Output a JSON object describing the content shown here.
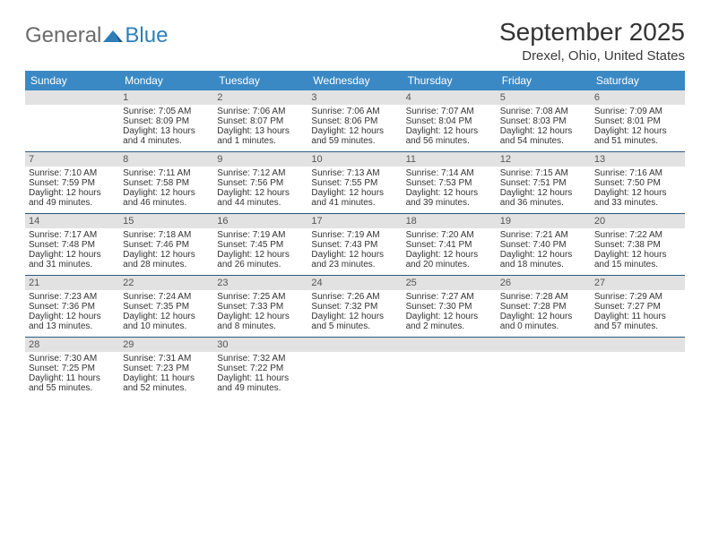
{
  "logo": {
    "text1": "General",
    "text2": "Blue"
  },
  "title": "September 2025",
  "location": "Drexel, Ohio, United States",
  "weekdays": [
    "Sunday",
    "Monday",
    "Tuesday",
    "Wednesday",
    "Thursday",
    "Friday",
    "Saturday"
  ],
  "colors": {
    "header_bg": "#3b89c4",
    "daynum_bg": "#e2e2e2",
    "row_border": "#2a5a82",
    "logo_gray": "#6b6b6b",
    "logo_blue": "#2d7fb8"
  },
  "weeks": [
    [
      {
        "n": "",
        "empty": true
      },
      {
        "n": "1",
        "sunrise": "7:05 AM",
        "sunset": "8:09 PM",
        "daylight": "13 hours and 4 minutes."
      },
      {
        "n": "2",
        "sunrise": "7:06 AM",
        "sunset": "8:07 PM",
        "daylight": "13 hours and 1 minutes."
      },
      {
        "n": "3",
        "sunrise": "7:06 AM",
        "sunset": "8:06 PM",
        "daylight": "12 hours and 59 minutes."
      },
      {
        "n": "4",
        "sunrise": "7:07 AM",
        "sunset": "8:04 PM",
        "daylight": "12 hours and 56 minutes."
      },
      {
        "n": "5",
        "sunrise": "7:08 AM",
        "sunset": "8:03 PM",
        "daylight": "12 hours and 54 minutes."
      },
      {
        "n": "6",
        "sunrise": "7:09 AM",
        "sunset": "8:01 PM",
        "daylight": "12 hours and 51 minutes."
      }
    ],
    [
      {
        "n": "7",
        "sunrise": "7:10 AM",
        "sunset": "7:59 PM",
        "daylight": "12 hours and 49 minutes."
      },
      {
        "n": "8",
        "sunrise": "7:11 AM",
        "sunset": "7:58 PM",
        "daylight": "12 hours and 46 minutes."
      },
      {
        "n": "9",
        "sunrise": "7:12 AM",
        "sunset": "7:56 PM",
        "daylight": "12 hours and 44 minutes."
      },
      {
        "n": "10",
        "sunrise": "7:13 AM",
        "sunset": "7:55 PM",
        "daylight": "12 hours and 41 minutes."
      },
      {
        "n": "11",
        "sunrise": "7:14 AM",
        "sunset": "7:53 PM",
        "daylight": "12 hours and 39 minutes."
      },
      {
        "n": "12",
        "sunrise": "7:15 AM",
        "sunset": "7:51 PM",
        "daylight": "12 hours and 36 minutes."
      },
      {
        "n": "13",
        "sunrise": "7:16 AM",
        "sunset": "7:50 PM",
        "daylight": "12 hours and 33 minutes."
      }
    ],
    [
      {
        "n": "14",
        "sunrise": "7:17 AM",
        "sunset": "7:48 PM",
        "daylight": "12 hours and 31 minutes."
      },
      {
        "n": "15",
        "sunrise": "7:18 AM",
        "sunset": "7:46 PM",
        "daylight": "12 hours and 28 minutes."
      },
      {
        "n": "16",
        "sunrise": "7:19 AM",
        "sunset": "7:45 PM",
        "daylight": "12 hours and 26 minutes."
      },
      {
        "n": "17",
        "sunrise": "7:19 AM",
        "sunset": "7:43 PM",
        "daylight": "12 hours and 23 minutes."
      },
      {
        "n": "18",
        "sunrise": "7:20 AM",
        "sunset": "7:41 PM",
        "daylight": "12 hours and 20 minutes."
      },
      {
        "n": "19",
        "sunrise": "7:21 AM",
        "sunset": "7:40 PM",
        "daylight": "12 hours and 18 minutes."
      },
      {
        "n": "20",
        "sunrise": "7:22 AM",
        "sunset": "7:38 PM",
        "daylight": "12 hours and 15 minutes."
      }
    ],
    [
      {
        "n": "21",
        "sunrise": "7:23 AM",
        "sunset": "7:36 PM",
        "daylight": "12 hours and 13 minutes."
      },
      {
        "n": "22",
        "sunrise": "7:24 AM",
        "sunset": "7:35 PM",
        "daylight": "12 hours and 10 minutes."
      },
      {
        "n": "23",
        "sunrise": "7:25 AM",
        "sunset": "7:33 PM",
        "daylight": "12 hours and 8 minutes."
      },
      {
        "n": "24",
        "sunrise": "7:26 AM",
        "sunset": "7:32 PM",
        "daylight": "12 hours and 5 minutes."
      },
      {
        "n": "25",
        "sunrise": "7:27 AM",
        "sunset": "7:30 PM",
        "daylight": "12 hours and 2 minutes."
      },
      {
        "n": "26",
        "sunrise": "7:28 AM",
        "sunset": "7:28 PM",
        "daylight": "12 hours and 0 minutes."
      },
      {
        "n": "27",
        "sunrise": "7:29 AM",
        "sunset": "7:27 PM",
        "daylight": "11 hours and 57 minutes."
      }
    ],
    [
      {
        "n": "28",
        "sunrise": "7:30 AM",
        "sunset": "7:25 PM",
        "daylight": "11 hours and 55 minutes."
      },
      {
        "n": "29",
        "sunrise": "7:31 AM",
        "sunset": "7:23 PM",
        "daylight": "11 hours and 52 minutes."
      },
      {
        "n": "30",
        "sunrise": "7:32 AM",
        "sunset": "7:22 PM",
        "daylight": "11 hours and 49 minutes."
      },
      {
        "n": "",
        "empty": true
      },
      {
        "n": "",
        "empty": true
      },
      {
        "n": "",
        "empty": true
      },
      {
        "n": "",
        "empty": true
      }
    ]
  ]
}
